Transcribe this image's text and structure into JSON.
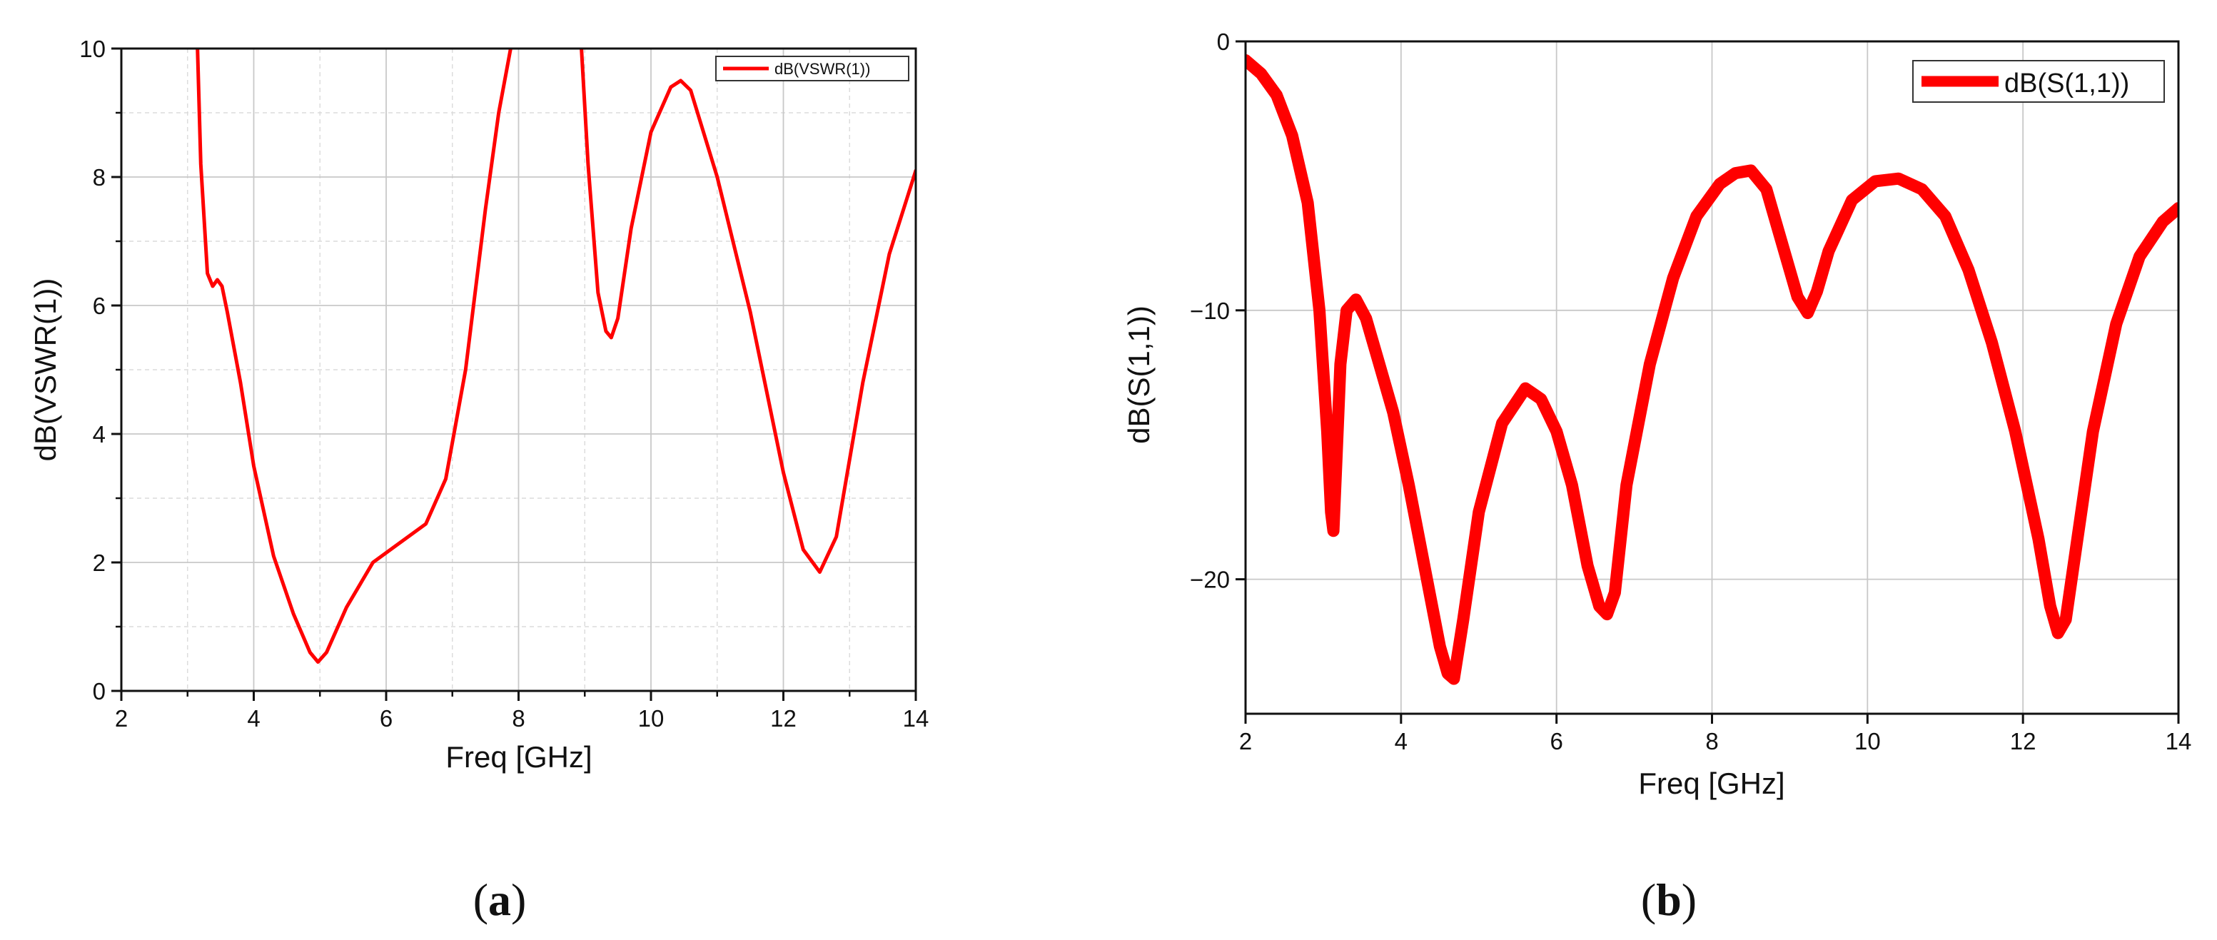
{
  "chart_data": [
    {
      "type": "line",
      "panel": "(a)",
      "panel_letter": "a",
      "xlabel": "Freq [GHz]",
      "ylabel": "dB(VSWR(1))",
      "xlim": [
        2,
        14
      ],
      "ylim": [
        0,
        10
      ],
      "xticks": [
        2,
        4,
        6,
        8,
        10,
        12,
        14
      ],
      "yticks": [
        0,
        2,
        4,
        6,
        8,
        10
      ],
      "grid": true,
      "legend_position": "top-right",
      "series": [
        {
          "name": "dB(VSWR(1))",
          "color": "#ff0000",
          "x": [
            3.15,
            3.2,
            3.3,
            3.38,
            3.45,
            3.52,
            3.6,
            3.8,
            4.0,
            4.3,
            4.6,
            4.85,
            4.97,
            5.1,
            5.4,
            5.8,
            6.2,
            6.6,
            6.9,
            7.2,
            7.5,
            7.7,
            7.88
          ],
          "values": [
            10.0,
            8.2,
            6.5,
            6.3,
            6.4,
            6.3,
            5.9,
            4.8,
            3.5,
            2.1,
            1.2,
            0.6,
            0.45,
            0.6,
            1.3,
            2.0,
            2.3,
            2.6,
            3.3,
            5.0,
            7.5,
            9.0,
            10.0
          ]
        },
        {
          "name": "",
          "color": "#ff0000",
          "x": [
            8.95,
            9.05,
            9.2,
            9.32,
            9.4,
            9.5,
            9.7,
            10.0,
            10.3,
            10.45,
            10.6,
            11.0,
            11.5,
            12.0,
            12.3,
            12.55,
            12.8,
            13.2,
            13.6,
            14.0
          ],
          "values": [
            10.0,
            8.2,
            6.2,
            5.6,
            5.5,
            5.8,
            7.2,
            8.7,
            9.4,
            9.5,
            9.35,
            8.0,
            5.9,
            3.4,
            2.2,
            1.85,
            2.4,
            4.8,
            6.8,
            8.1
          ]
        }
      ]
    },
    {
      "type": "line",
      "panel": "(b)",
      "panel_letter": "b",
      "xlabel": "Freq [GHz]",
      "ylabel": "dB(S(1,1))",
      "xlim": [
        2,
        14
      ],
      "ylim": [
        -25,
        0
      ],
      "xticks": [
        2,
        4,
        6,
        8,
        10,
        12,
        14
      ],
      "yticks": [
        0,
        -10,
        -20
      ],
      "grid": true,
      "legend_position": "top-right",
      "series": [
        {
          "name": "dB(S(1,1))",
          "color": "#ff0000",
          "x": [
            2.0,
            2.2,
            2.4,
            2.6,
            2.8,
            2.95,
            3.05,
            3.1,
            3.13,
            3.17,
            3.22,
            3.3,
            3.42,
            3.55,
            3.7,
            3.9,
            4.1,
            4.3,
            4.5,
            4.6,
            4.68,
            4.8,
            5.0,
            5.3,
            5.6,
            5.8,
            6.0,
            6.2,
            6.4,
            6.55,
            6.65,
            6.75,
            6.9,
            7.2,
            7.5,
            7.8,
            8.1,
            8.3,
            8.5,
            8.7,
            8.9,
            9.1,
            9.23,
            9.35,
            9.5,
            9.8,
            10.1,
            10.4,
            10.7,
            11.0,
            11.3,
            11.6,
            11.9,
            12.2,
            12.35,
            12.45,
            12.55,
            12.7,
            12.9,
            13.2,
            13.5,
            13.8,
            14.0
          ],
          "values": [
            -0.7,
            -1.2,
            -2.0,
            -3.5,
            -6.0,
            -10.0,
            -14.5,
            -17.5,
            -18.2,
            -15.5,
            -12.0,
            -10.0,
            -9.6,
            -10.3,
            -11.8,
            -13.8,
            -16.5,
            -19.5,
            -22.5,
            -23.5,
            -23.7,
            -21.5,
            -17.5,
            -14.2,
            -12.9,
            -13.3,
            -14.5,
            -16.5,
            -19.5,
            -21.0,
            -21.3,
            -20.5,
            -16.5,
            -12.0,
            -8.8,
            -6.5,
            -5.3,
            -4.9,
            -4.8,
            -5.5,
            -7.5,
            -9.5,
            -10.1,
            -9.3,
            -7.8,
            -5.9,
            -5.2,
            -5.1,
            -5.5,
            -6.5,
            -8.5,
            -11.2,
            -14.5,
            -18.5,
            -21.0,
            -22.0,
            -21.5,
            -18.5,
            -14.5,
            -10.5,
            -8.0,
            -6.7,
            -6.2
          ]
        }
      ]
    }
  ]
}
